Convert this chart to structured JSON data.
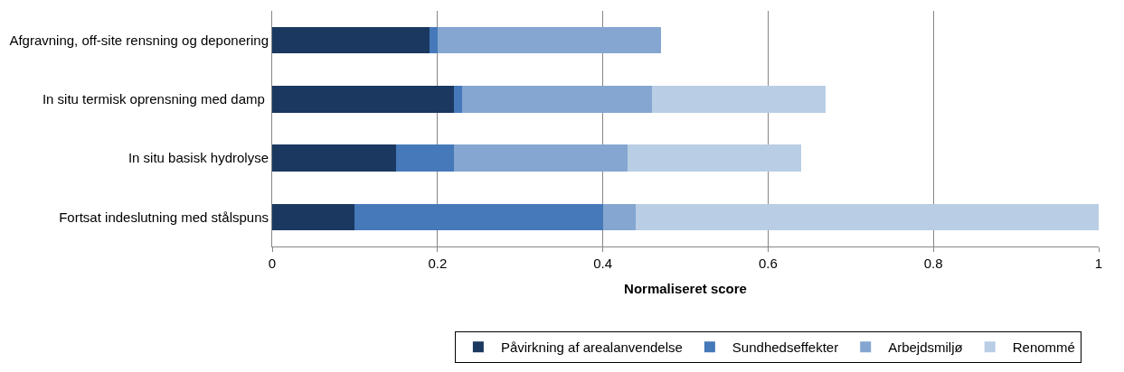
{
  "chart_data": {
    "type": "bar",
    "orientation": "horizontal",
    "stacked": true,
    "xlabel": "Normaliseret score",
    "categories": [
      "Afgravning, off-site rensning og deponering",
      "In situ termisk oprensning med damp ",
      "In situ basisk hydrolyse",
      "Fortsat indeslutning med stålspuns"
    ],
    "series": [
      {
        "name": "Påvirkning af arealanvendelse",
        "color": "#1a3860",
        "values": [
          0.19,
          0.22,
          0.15,
          0.1
        ]
      },
      {
        "name": "Sundhedseffekter",
        "color": "#4679b9",
        "values": [
          0.01,
          0.01,
          0.07,
          0.3
        ]
      },
      {
        "name": "Arbejdsmiljø",
        "color": "#84a6d0",
        "values": [
          0.27,
          0.23,
          0.21,
          0.04
        ]
      },
      {
        "name": "Renommé",
        "color": "#b9cde5",
        "values": [
          0,
          0.21,
          0.21,
          0.56
        ]
      }
    ],
    "xlim": [
      0,
      1
    ],
    "xticks": [
      0,
      0.2,
      0.4,
      0.6,
      0.8,
      1
    ],
    "grid": "x",
    "legend": "bottom"
  }
}
